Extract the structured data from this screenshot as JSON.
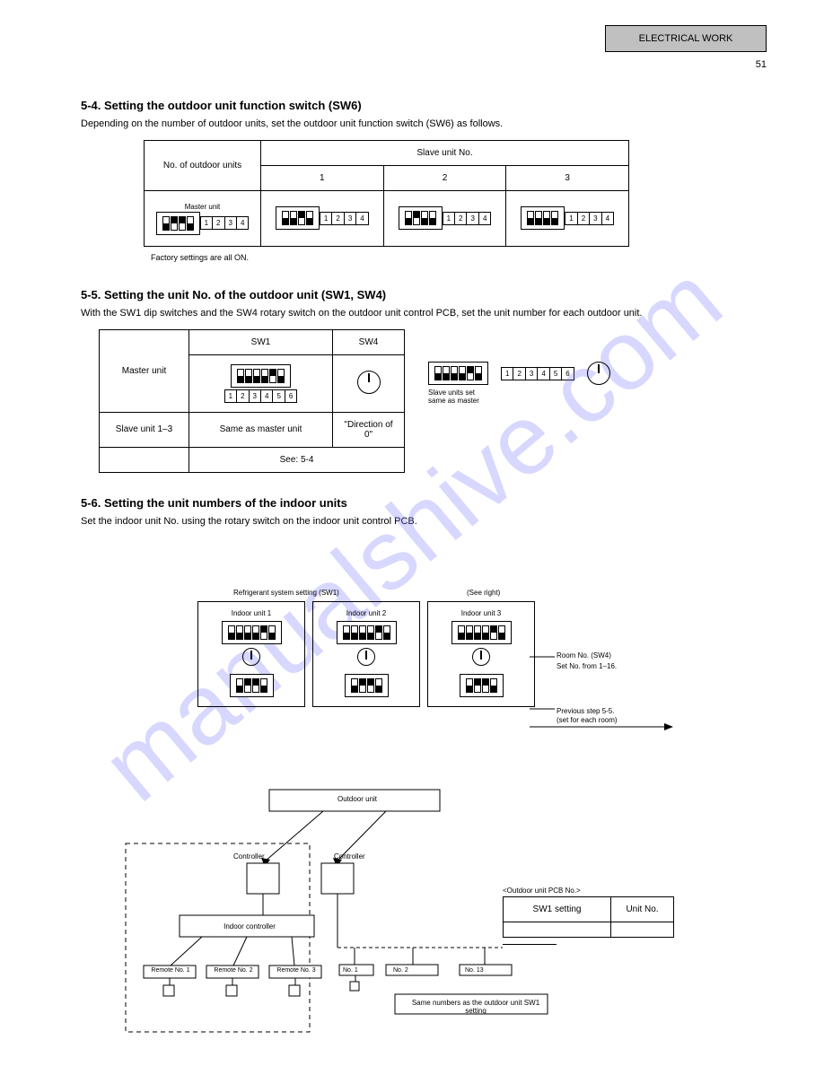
{
  "header_box": "ELECTRICAL WORK",
  "page_num": "51",
  "sec1_title": "5-4. Setting the outdoor unit function switch (SW6)",
  "sec1_body": "Depending on the number of outdoor units, set the outdoor unit function switch (SW6) as follows.",
  "table1": {
    "row1_col1": "No. of outdoor units",
    "row1_span": "Slave unit No.",
    "row2": [
      "1",
      "2",
      "3"
    ],
    "row3_label": "Master unit",
    "dip_labels_4": [
      "1",
      "2",
      "3",
      "4"
    ],
    "master": [
      "down",
      "up",
      "up",
      "down"
    ],
    "slave1": [
      "down",
      "down",
      "up",
      "down"
    ],
    "slave2": [
      "down",
      "up",
      "down",
      "down"
    ],
    "slave3": [
      "down",
      "down",
      "down",
      "down"
    ]
  },
  "note1": "Factory settings are all ON.",
  "sec2_title": "5-5. Setting the unit No. of the outdoor unit (SW1, SW4)",
  "sec2_body": "With the SW1 dip switches and the SW4 rotary switch on the outdoor unit control PCB, set the unit number for each outdoor unit.",
  "table2": {
    "c1": "Master unit",
    "c2": "SW1",
    "c3": "SW4",
    "dip6": [
      "down",
      "down",
      "down",
      "down",
      "up",
      "down"
    ],
    "dip_labels_6": [
      "1",
      "2",
      "3",
      "4",
      "5",
      "6"
    ],
    "r2a": "Slave unit 1–3",
    "r2b": "Same as master unit",
    "r2c": "\"Direction of 0\"",
    "r3b": "See: 5-4",
    "side_dip": [
      "down",
      "down",
      "down",
      "down",
      "up",
      "down"
    ],
    "side_caption1": "Slave units set",
    "side_caption2": "same as master"
  },
  "sec3_title": "5-6. Setting the unit numbers of the indoor units",
  "sec3_body1": "Set the indoor unit No. using the rotary switch on the indoor unit control PCB.",
  "refset": "Refrigerant system setting (SW1)",
  "scap": "(See right)",
  "diagram_labels": {
    "in1": "Indoor unit 1",
    "in2": "Indoor unit 2",
    "in3": "Indoor unit 3",
    "room": "Room No. (SW4)",
    "setno": "Set No. from 1–16.",
    "prev": "Previous step 5-5.",
    "eachroom": "(set for each room)",
    "outdoor_unit": "Outdoor unit",
    "controller": "Controller",
    "indoor_ctrl": "Indoor controller",
    "remotes": [
      "Remote No. 1",
      "Remote No. 2",
      "Remote No. 3"
    ],
    "rn1": "No. 1",
    "rn2": "No. 2",
    "rn13": "No. 13",
    "indoor_table_caption": "<Outdoor unit PCB No.>",
    "tcol1": "SW1 setting",
    "tcol2": "Unit No.",
    "same_as": "Same numbers as the outdoor unit SW1 setting"
  },
  "colors": {
    "border": "#000000",
    "gray": "#c0c0c0",
    "bg": "#ffffff",
    "wm": "rgba(110,110,255,0.28)"
  }
}
